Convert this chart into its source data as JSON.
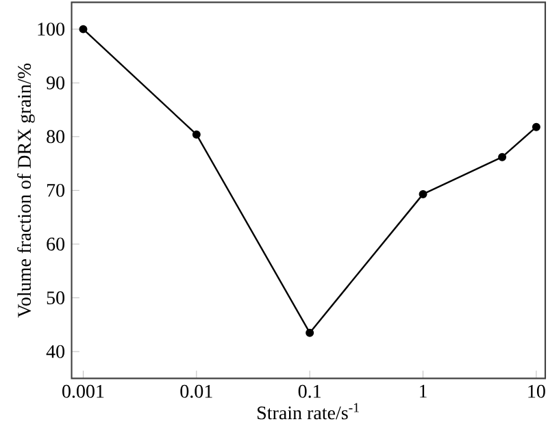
{
  "chart_data": {
    "type": "line",
    "xlabel": "Strain rate/s$^{-1}$",
    "ylabel": "Volume fraction of DRX grain/%",
    "x": [
      0.001,
      0.01,
      0.1,
      1,
      5,
      10
    ],
    "series": [
      {
        "color": "#000000",
        "values": [
          100,
          80.4,
          43.5,
          69.3,
          76.2,
          81.8
        ]
      }
    ],
    "log": "x",
    "marker": "circle",
    "line_style": "solid",
    "grid": false,
    "xlim": [
      0.00079,
      12
    ],
    "ylim": [
      35,
      105
    ],
    "xticks": [
      0.001,
      0.01,
      0.1,
      1,
      10
    ],
    "yticks": [
      40,
      50,
      60,
      70,
      80,
      90,
      100
    ]
  }
}
